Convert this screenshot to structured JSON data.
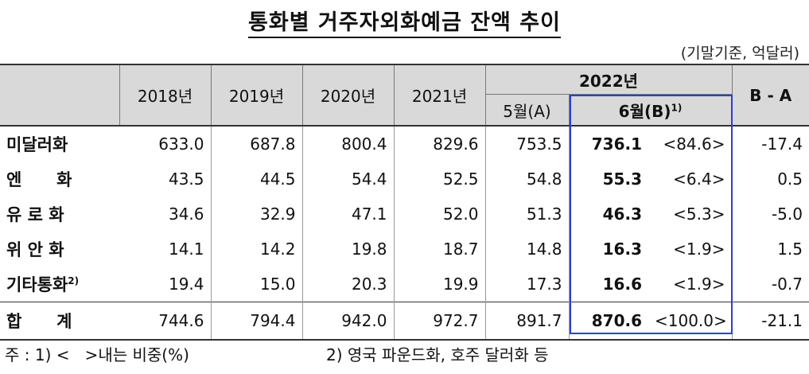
{
  "title": "통화별 거주자외화예금 잔액 추이",
  "unit": "(기말기준, 억달러)",
  "headers": {
    "years": [
      "2018년",
      "2019년",
      "2020년",
      "2021년"
    ],
    "year2022": "2022년",
    "may": "5월(A)",
    "june": "6월(B)",
    "june_sup": "1)",
    "diff": "B - A"
  },
  "rows": [
    {
      "name": "미달러화",
      "sup": "",
      "v2018": "633.0",
      "v2019": "687.8",
      "v2020": "800.4",
      "v2021": "829.6",
      "may": "753.5",
      "june": "736.1",
      "share": "<84.6>",
      "diff": "-17.4"
    },
    {
      "name": "엔      화",
      "sup": "",
      "v2018": "43.5",
      "v2019": "44.5",
      "v2020": "54.4",
      "v2021": "52.5",
      "may": "54.8",
      "june": "55.3",
      "share": "<6.4>",
      "diff": "0.5"
    },
    {
      "name": "유 로 화",
      "sup": "",
      "v2018": "34.6",
      "v2019": "32.9",
      "v2020": "47.1",
      "v2021": "52.0",
      "may": "51.3",
      "june": "46.3",
      "share": "<5.3>",
      "diff": "-5.0"
    },
    {
      "name": "위 안 화",
      "sup": "",
      "v2018": "14.1",
      "v2019": "14.2",
      "v2020": "19.8",
      "v2021": "18.7",
      "may": "14.8",
      "june": "16.3",
      "share": "<1.9>",
      "diff": "1.5"
    },
    {
      "name": "기타통화",
      "sup": "2)",
      "v2018": "19.4",
      "v2019": "15.0",
      "v2020": "20.3",
      "v2021": "19.9",
      "may": "17.3",
      "june": "16.6",
      "share": "<1.9>",
      "diff": "-0.7"
    }
  ],
  "total": {
    "name": "합      계",
    "v2018": "744.6",
    "v2019": "794.4",
    "v2020": "942.0",
    "v2021": "972.7",
    "may": "891.7",
    "june": "870.6",
    "share": "<100.0>",
    "diff": "-21.1"
  },
  "notes": {
    "note1": "주 : 1) <   >내는 비중(%)",
    "note2": "2) 영국 파운드화, 호주 달러화 등"
  },
  "colors": {
    "header_bg": "#d9d9d9",
    "highlight_border": "#2b3fd6"
  }
}
